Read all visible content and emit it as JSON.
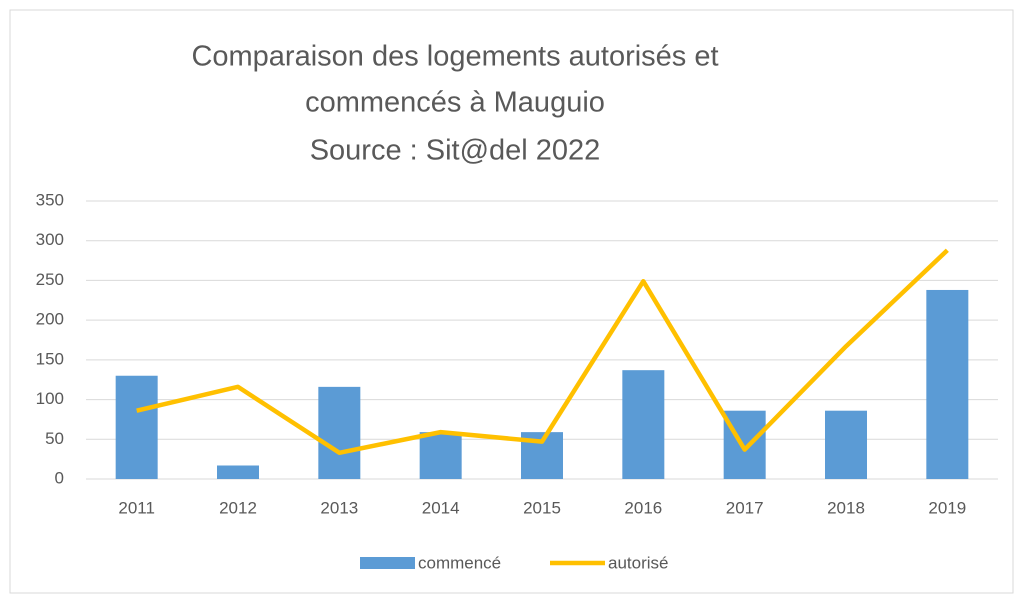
{
  "chart_data": {
    "type": "bar_line",
    "title": [
      "Comparaison des logements autorisés et",
      "commencés à Mauguio",
      "Source : Sit@del 2022"
    ],
    "categories": [
      "2011",
      "2012",
      "2013",
      "2014",
      "2015",
      "2016",
      "2017",
      "2018",
      "2019"
    ],
    "series": [
      {
        "name": "commencé",
        "type": "bar",
        "color": "#5b9bd5",
        "values": [
          130,
          17,
          116,
          59,
          59,
          137,
          86,
          86,
          238
        ]
      },
      {
        "name": "autorisé",
        "type": "line",
        "color": "#ffc000",
        "values": [
          86,
          116,
          33,
          59,
          47,
          249,
          37,
          167,
          288
        ]
      }
    ],
    "ylim": [
      0,
      350
    ],
    "yticks": [
      0,
      50,
      100,
      150,
      200,
      250,
      300,
      350
    ],
    "grid": true,
    "legend": "bottom"
  }
}
